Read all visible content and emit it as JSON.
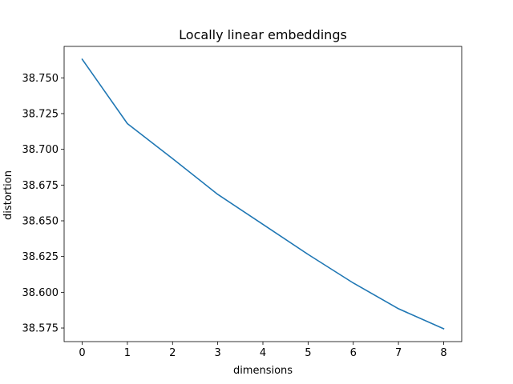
{
  "chart_data": {
    "type": "line",
    "title": "Locally linear embeddings",
    "xlabel": "dimensions",
    "ylabel": "distortion",
    "x": [
      0,
      1,
      2,
      3,
      4,
      5,
      6,
      7,
      8
    ],
    "series": [
      {
        "values": [
          38.763,
          38.718,
          38.6935,
          38.6685,
          38.6475,
          38.6265,
          38.6065,
          38.5885,
          38.5745
        ],
        "color": "#1f77b4"
      }
    ],
    "xlim": [
      -0.4,
      8.4
    ],
    "ylim": [
      38.5655,
      38.772
    ],
    "xticks": [
      0,
      1,
      2,
      3,
      4,
      5,
      6,
      7,
      8
    ],
    "yticks": [
      "38.575",
      "38.600",
      "38.625",
      "38.650",
      "38.675",
      "38.700",
      "38.725",
      "38.750"
    ],
    "grid": false,
    "legend": "none"
  }
}
